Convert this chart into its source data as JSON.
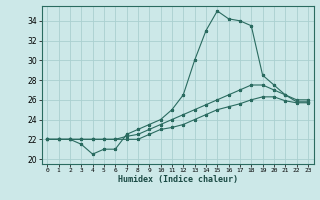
{
  "xlabel": "Humidex (Indice chaleur)",
  "ylabel": "",
  "bg_color": "#cce8e8",
  "grid_color": "#aad0d0",
  "line_color": "#2a6b60",
  "xlim": [
    -0.5,
    23.5
  ],
  "ylim": [
    19.5,
    35.5
  ],
  "xticks": [
    0,
    1,
    2,
    3,
    4,
    5,
    6,
    7,
    8,
    9,
    10,
    11,
    12,
    13,
    14,
    15,
    16,
    17,
    18,
    19,
    20,
    21,
    22,
    23
  ],
  "yticks": [
    20,
    22,
    24,
    26,
    28,
    30,
    32,
    34
  ],
  "line1_x": [
    0,
    1,
    2,
    3,
    4,
    5,
    6,
    7,
    8,
    9,
    10,
    11,
    12,
    13,
    14,
    15,
    16,
    17,
    18,
    19,
    20,
    21,
    22,
    23
  ],
  "line1_y": [
    22,
    22,
    22,
    21.5,
    20.5,
    21,
    21,
    22.5,
    23,
    23.5,
    24,
    25,
    26.5,
    30,
    33,
    35,
    34.2,
    34,
    33.5,
    28.5,
    27.5,
    26.5,
    25.8,
    25.8
  ],
  "line2_x": [
    0,
    1,
    2,
    3,
    4,
    5,
    6,
    7,
    8,
    9,
    10,
    11,
    12,
    13,
    14,
    15,
    16,
    17,
    18,
    19,
    20,
    21,
    22,
    23
  ],
  "line2_y": [
    22,
    22,
    22,
    22,
    22,
    22,
    22,
    22.3,
    22.5,
    23,
    23.5,
    24,
    24.5,
    25,
    25.5,
    26,
    26.5,
    27,
    27.5,
    27.5,
    27,
    26.5,
    26,
    26
  ],
  "line3_x": [
    0,
    1,
    2,
    3,
    4,
    5,
    6,
    7,
    8,
    9,
    10,
    11,
    12,
    13,
    14,
    15,
    16,
    17,
    18,
    19,
    20,
    21,
    22,
    23
  ],
  "line3_y": [
    22,
    22,
    22,
    22,
    22,
    22,
    22,
    22,
    22,
    22.5,
    23,
    23.2,
    23.5,
    24,
    24.5,
    25,
    25.3,
    25.6,
    26,
    26.3,
    26.3,
    25.9,
    25.7,
    25.7
  ]
}
